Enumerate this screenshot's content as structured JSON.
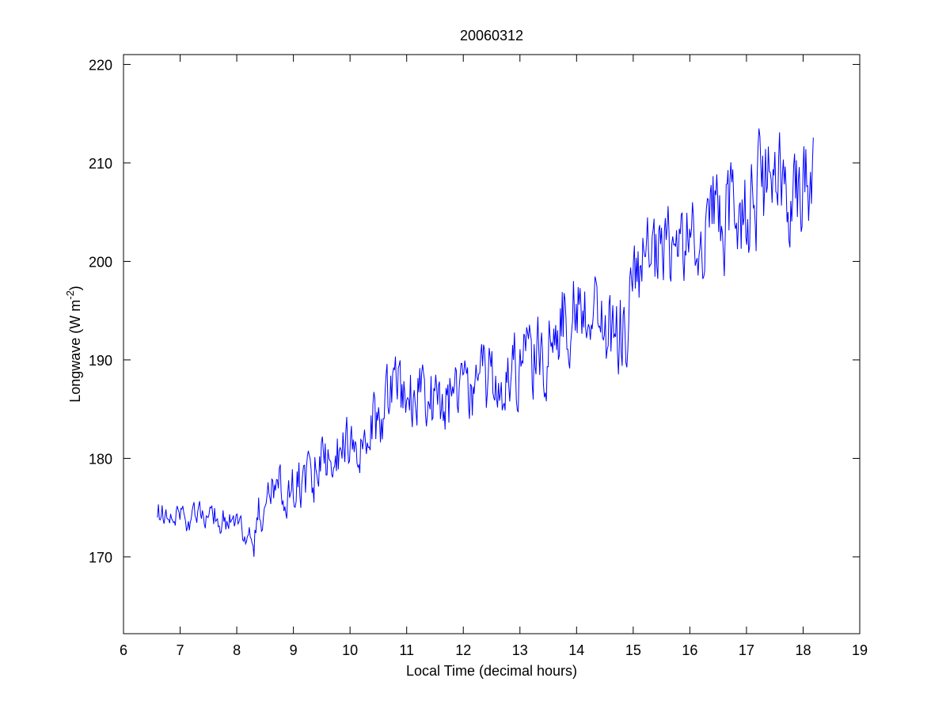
{
  "chart_data": {
    "type": "line",
    "title": "20060312",
    "xlabel": "Local Time (decimal hours)",
    "ylabel": "Longwave (W m",
    "ylabel_superscript": "-2",
    "ylabel_suffix": ")",
    "xlim": [
      6,
      19
    ],
    "ylim": [
      162.2,
      221
    ],
    "xticks": [
      6,
      7,
      8,
      9,
      10,
      11,
      12,
      13,
      14,
      15,
      16,
      17,
      18,
      19
    ],
    "yticks": [
      170,
      180,
      190,
      200,
      210,
      220
    ],
    "grid": false,
    "line_color": "#0000ff",
    "series": [
      {
        "anchors": [
          [
            6.6,
            174.0
          ],
          [
            6.8,
            175.0
          ],
          [
            7.0,
            174.6
          ],
          [
            7.2,
            173.6
          ],
          [
            7.4,
            174.0
          ],
          [
            7.6,
            174.3
          ],
          [
            7.8,
            173.6
          ],
          [
            8.0,
            173.0
          ],
          [
            8.15,
            172.4
          ],
          [
            8.3,
            173.0
          ],
          [
            8.5,
            175.0
          ],
          [
            8.7,
            176.4
          ],
          [
            8.9,
            177.4
          ],
          [
            9.1,
            177.0
          ],
          [
            9.3,
            178.0
          ],
          [
            9.5,
            180.6
          ],
          [
            9.7,
            179.0
          ],
          [
            9.9,
            181.0
          ],
          [
            10.1,
            181.6
          ],
          [
            10.3,
            182.8
          ],
          [
            10.5,
            184.0
          ],
          [
            10.7,
            186.5
          ],
          [
            10.9,
            186.6
          ],
          [
            11.1,
            186.6
          ],
          [
            11.3,
            186.6
          ],
          [
            11.5,
            185.0
          ],
          [
            11.7,
            185.6
          ],
          [
            11.9,
            187.0
          ],
          [
            12.1,
            186.6
          ],
          [
            12.3,
            187.0
          ],
          [
            12.5,
            187.6
          ],
          [
            12.7,
            188.6
          ],
          [
            12.9,
            189.0
          ],
          [
            13.1,
            189.6
          ],
          [
            13.3,
            190.0
          ],
          [
            13.5,
            191.0
          ],
          [
            13.7,
            194.0
          ],
          [
            13.9,
            195.0
          ],
          [
            14.1,
            195.6
          ],
          [
            14.3,
            196.0
          ],
          [
            14.5,
            193.0
          ],
          [
            14.7,
            192.0
          ],
          [
            14.85,
            193.0
          ],
          [
            15.0,
            197.0
          ],
          [
            15.2,
            199.6
          ],
          [
            15.4,
            199.4
          ],
          [
            15.6,
            201.0
          ],
          [
            15.8,
            202.0
          ],
          [
            16.0,
            202.0
          ],
          [
            16.15,
            201.0
          ],
          [
            16.35,
            206.0
          ],
          [
            16.55,
            204.0
          ],
          [
            16.75,
            204.6
          ],
          [
            17.0,
            205.6
          ],
          [
            17.2,
            206.6
          ],
          [
            17.4,
            207.6
          ],
          [
            17.6,
            207.4
          ],
          [
            17.8,
            208.0
          ],
          [
            18.0,
            208.6
          ],
          [
            18.18,
            209.2
          ]
        ],
        "noise_amplitude": 2.4
      }
    ]
  }
}
